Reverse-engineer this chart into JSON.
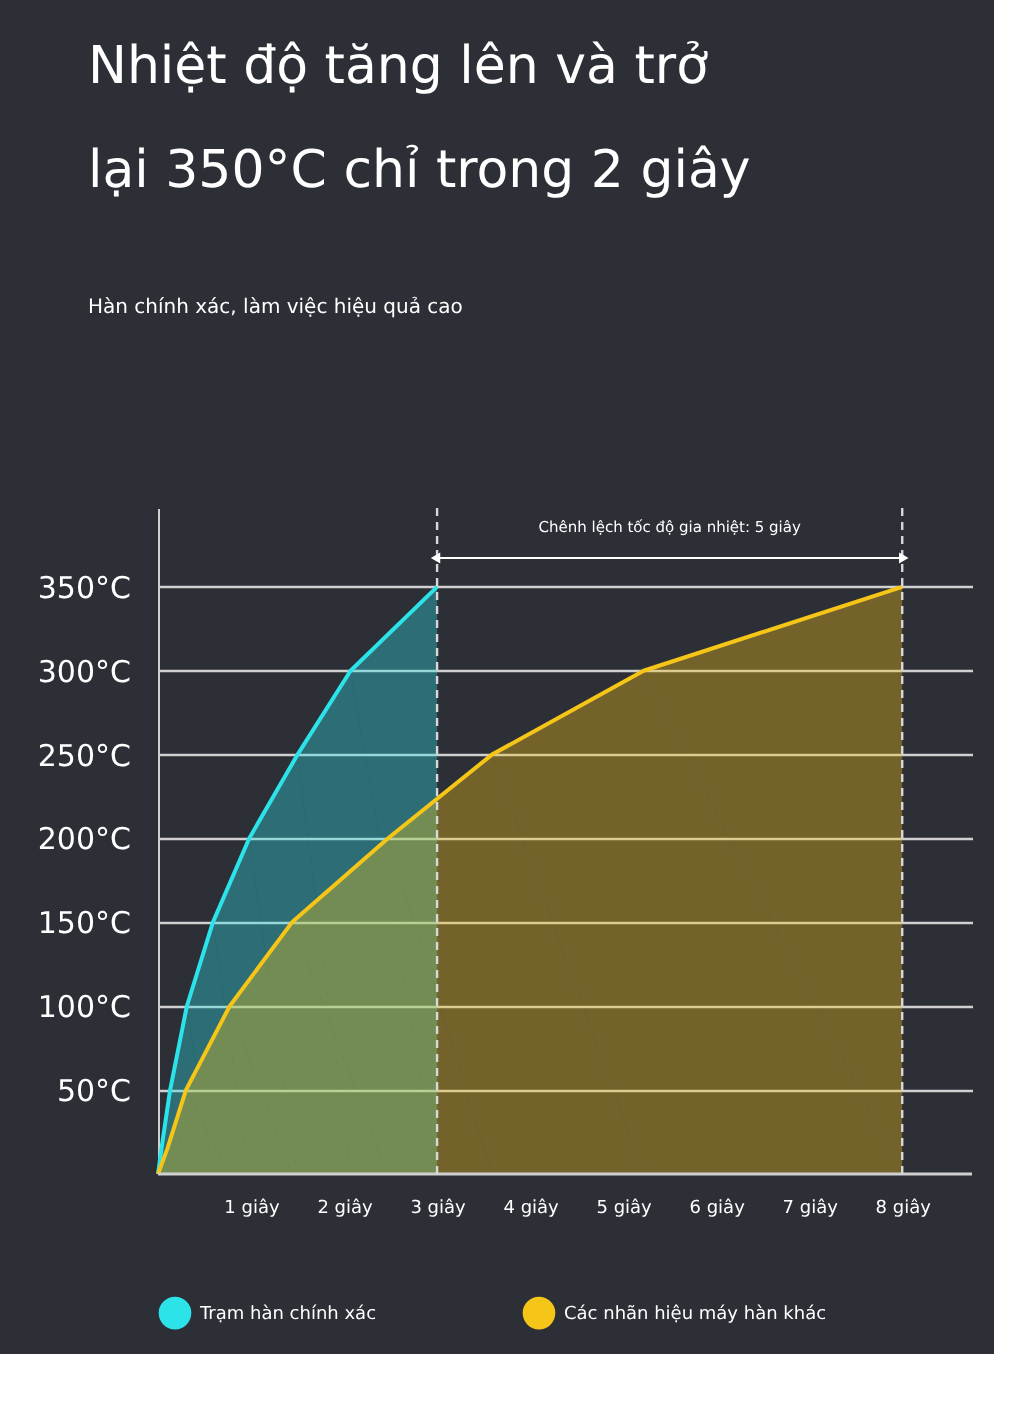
{
  "chart_data": {
    "type": "area",
    "title": "Nhiệt độ tăng lên và trở\nlại 350°C chỉ trong 2 giây",
    "subtitle": "Hàn chính xác, làm việc hiệu quả cao",
    "series": [
      {
        "name": "Trạm hàn chính xác",
        "color": "#2de3ea",
        "x": [
          0,
          0.05,
          0.13,
          0.31,
          0.59,
          0.98,
          1.5,
          2.07,
          3
        ],
        "values": [
          0,
          20,
          50,
          100,
          150,
          200,
          250,
          300,
          350
        ]
      },
      {
        "name": "Các nhãn hiệu máy hàn khác",
        "color": "#f5c518",
        "x": [
          0,
          0.1,
          0.3,
          0.77,
          1.44,
          2.47,
          3.59,
          5.22,
          8
        ],
        "values": [
          0,
          15,
          50,
          100,
          150,
          200,
          250,
          300,
          350
        ]
      }
    ],
    "xlim": [
      0,
      8.75
    ],
    "xticks": [
      {
        "value": 1,
        "label": "1 giây"
      },
      {
        "value": 2,
        "label": "2 giây"
      },
      {
        "value": 3,
        "label": "3 giây"
      },
      {
        "value": 4,
        "label": "4 giây"
      },
      {
        "value": 5,
        "label": "5 giây"
      },
      {
        "value": 6,
        "label": "6 giây"
      },
      {
        "value": 7,
        "label": "7 giây"
      },
      {
        "value": 8,
        "label": "8 giây"
      }
    ],
    "ylim": [
      0,
      397
    ],
    "yticks": [
      {
        "value": 50,
        "label": "50°C"
      },
      {
        "value": 100,
        "label": "100°C"
      },
      {
        "value": 150,
        "label": "150°C"
      },
      {
        "value": 200,
        "label": "200°C"
      },
      {
        "value": 250,
        "label": "250°C"
      },
      {
        "value": 300,
        "label": "300°C"
      },
      {
        "value": 350,
        "label": "350°C"
      }
    ],
    "ref_lines": [
      {
        "axis": "x",
        "value": 3,
        "line_style": "dashed",
        "color": "#d8d8d8"
      },
      {
        "axis": "x",
        "value": 8,
        "line_style": "dashed",
        "color": "#d8d8d8"
      }
    ],
    "annotations": [
      "Chênh lệch tốc độ gia nhiệt: 5 giây"
    ],
    "grid": "y",
    "legend": "bottom"
  }
}
